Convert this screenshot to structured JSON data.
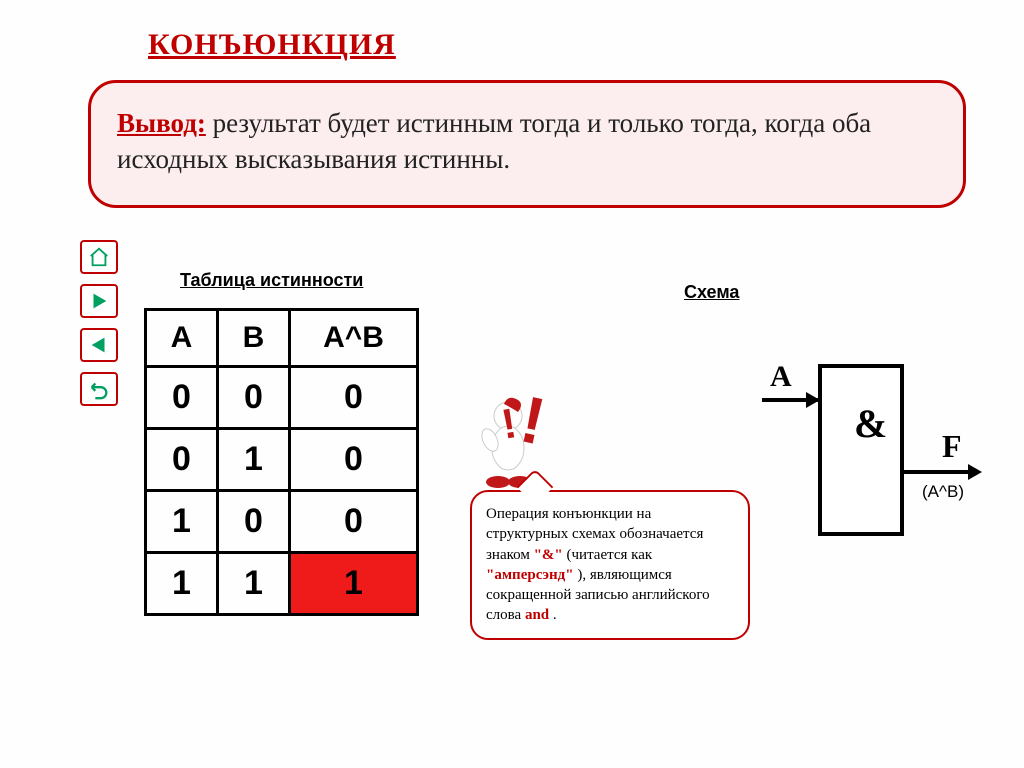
{
  "title": {
    "text": "КОНЪЮНКЦИЯ",
    "color": "#c00000"
  },
  "conclusion": {
    "label": "Вывод:",
    "label_color": "#c00000",
    "text": " результат будет истинным тогда и только тогда, когда оба исходных высказывания истинны.",
    "bg_color": "#fceeee",
    "border_color": "#c00000",
    "text_color": "#222222"
  },
  "nav": {
    "border_color": "#c00000",
    "icon_color": "#00a060",
    "buttons": [
      "home",
      "play",
      "back",
      "undo"
    ]
  },
  "truth_table": {
    "title": "Таблица истинности",
    "columns": [
      "А",
      "В",
      "А^В"
    ],
    "rows": [
      {
        "a": "0",
        "b": "0",
        "r": "0",
        "hl": false
      },
      {
        "a": "0",
        "b": "1",
        "r": "0",
        "hl": false
      },
      {
        "a": "1",
        "b": "0",
        "r": "0",
        "hl": false
      },
      {
        "a": "1",
        "b": "1",
        "r": "1",
        "hl": true
      }
    ],
    "highlight_color": "#ef1a1a"
  },
  "schema": {
    "title": "Схема",
    "input_label": "A",
    "gate_symbol": "&",
    "output_label": "F",
    "output_sub": "(А^В)"
  },
  "callout": {
    "border_color": "#c00000",
    "p1a": "Операция конъюнкции на структурных схемах обозначается знаком ",
    "sym": "\"&\"",
    "p1b": " (читается как ",
    "amp": "\"амперсэнд\"",
    "p1c": "), являющимся сокращенной записью английского слова ",
    "and": "and",
    "p1d": "."
  },
  "figure": {
    "ball_color": "#ffffff",
    "accent_color": "#c01818",
    "excl_color": "#c01818"
  }
}
